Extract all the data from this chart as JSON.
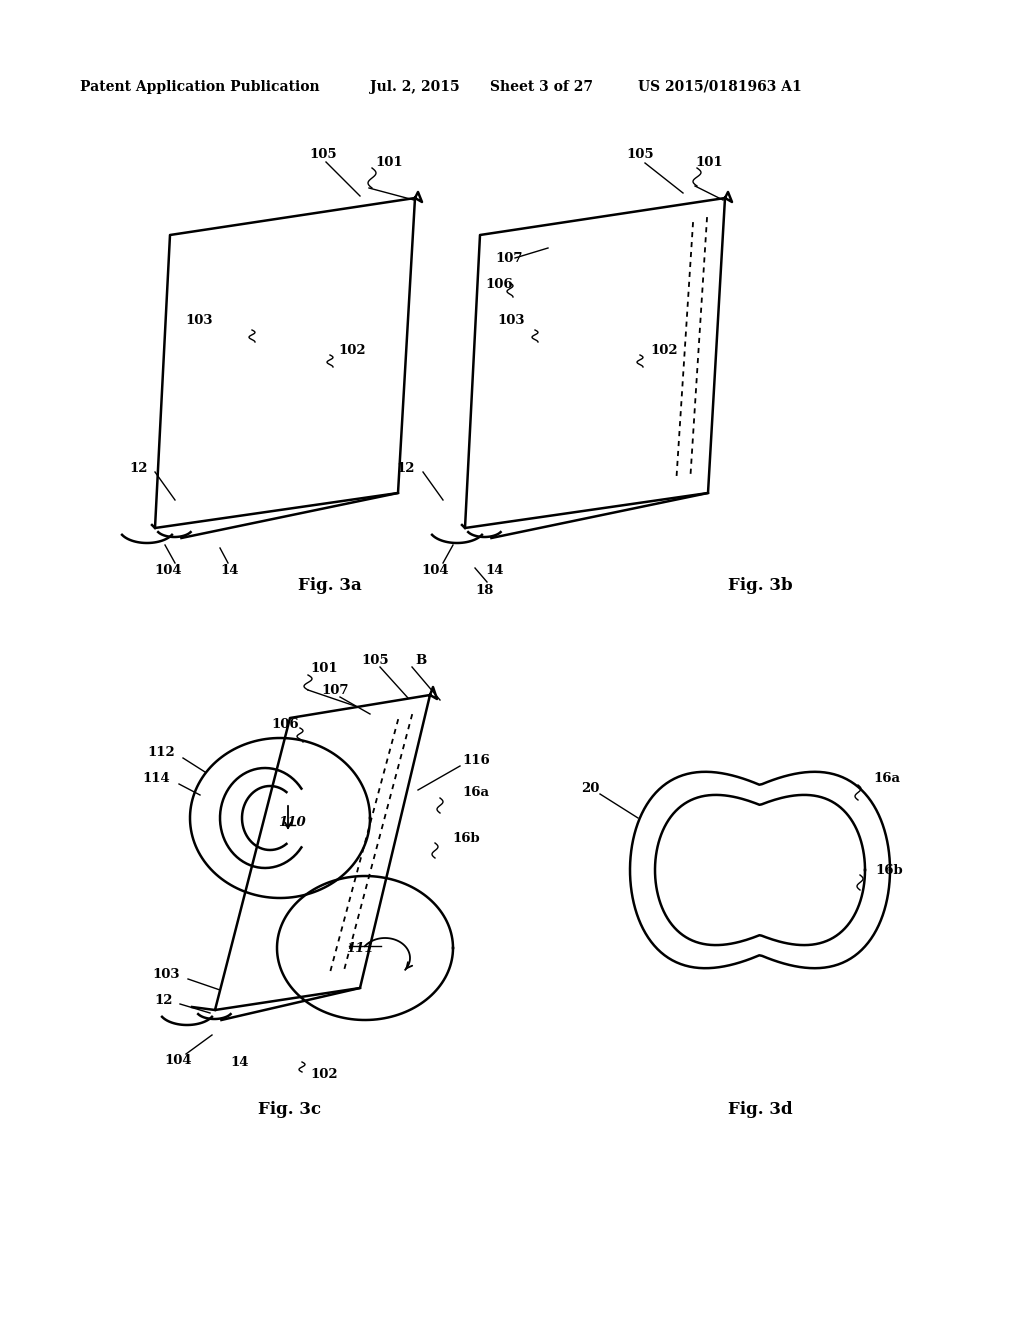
{
  "bg_color": "#ffffff",
  "line_color": "#000000",
  "header_text": "Patent Application Publication",
  "header_date": "Jul. 2, 2015",
  "header_sheet": "Sheet 3 of 27",
  "header_patent": "US 2015/0181963 A1",
  "fig3a_label": "Fig. 3a",
  "fig3b_label": "Fig. 3b",
  "fig3c_label": "Fig. 3c",
  "fig3d_label": "Fig. 3d"
}
